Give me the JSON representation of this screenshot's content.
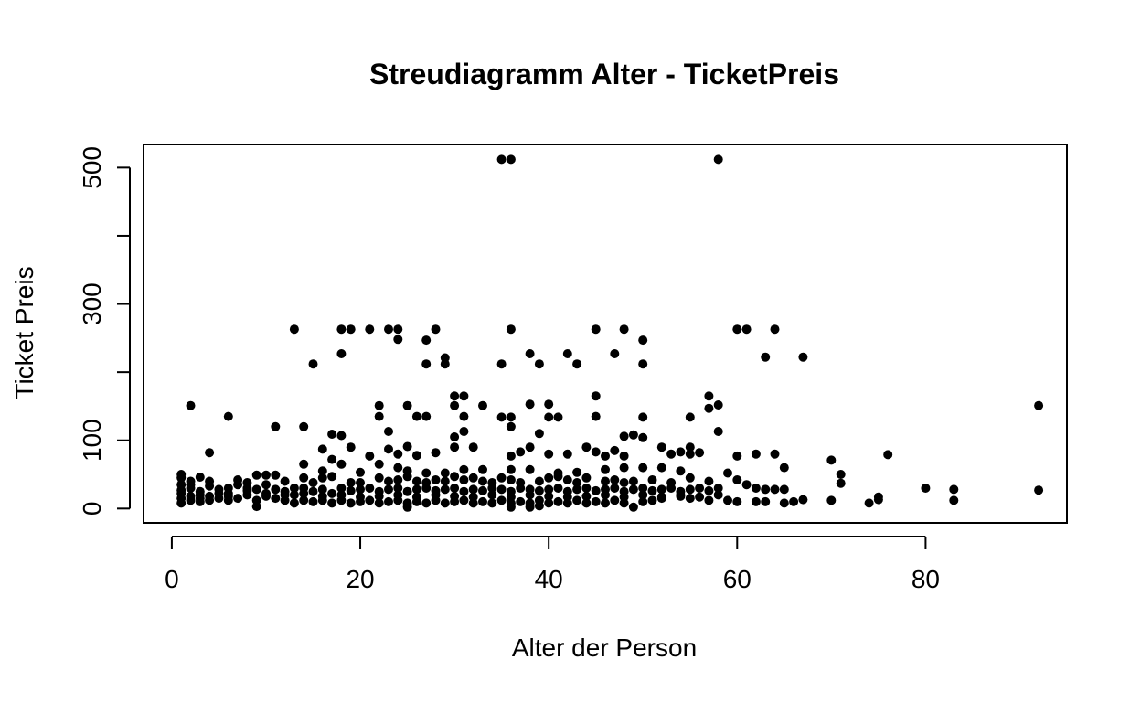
{
  "chart_data": {
    "type": "scatter",
    "title": "Streudiagramm Alter - TicketPreis",
    "xlabel": "Alter der Person",
    "ylabel": "Ticket Preis",
    "xlim": [
      -3,
      95
    ],
    "ylim": [
      -21,
      534
    ],
    "x_ticks": [
      0,
      20,
      40,
      60,
      80
    ],
    "y_ticks": [
      0,
      100,
      200,
      300,
      400,
      500
    ],
    "x_tick_labels": [
      "0",
      "20",
      "40",
      "60",
      "80"
    ],
    "y_tick_labels": [
      "0",
      "100",
      "300",
      "500"
    ],
    "y_tick_label_values": [
      0,
      100,
      300,
      500
    ],
    "grid": false,
    "legend": "none",
    "point_color": "#000000",
    "points": [
      [
        35,
        512
      ],
      [
        36,
        512
      ],
      [
        58,
        512
      ],
      [
        13,
        263
      ],
      [
        18,
        263
      ],
      [
        19,
        263
      ],
      [
        21,
        263
      ],
      [
        23,
        263
      ],
      [
        24,
        263
      ],
      [
        28,
        263
      ],
      [
        36,
        263
      ],
      [
        45,
        263
      ],
      [
        48,
        263
      ],
      [
        60,
        263
      ],
      [
        61,
        263
      ],
      [
        64,
        263
      ],
      [
        24,
        248
      ],
      [
        27,
        247
      ],
      [
        50,
        247
      ],
      [
        18,
        227
      ],
      [
        29,
        221
      ],
      [
        38,
        227
      ],
      [
        42,
        227
      ],
      [
        47,
        227
      ],
      [
        63,
        222
      ],
      [
        67,
        222
      ],
      [
        15,
        212
      ],
      [
        27,
        212
      ],
      [
        29,
        212
      ],
      [
        35,
        212
      ],
      [
        39,
        212
      ],
      [
        43,
        212
      ],
      [
        50,
        212
      ],
      [
        30,
        165
      ],
      [
        31,
        165
      ],
      [
        45,
        165
      ],
      [
        57,
        165
      ],
      [
        2,
        151
      ],
      [
        22,
        151
      ],
      [
        25,
        151
      ],
      [
        30,
        151
      ],
      [
        33,
        151
      ],
      [
        38,
        153
      ],
      [
        40,
        153
      ],
      [
        57,
        147
      ],
      [
        58,
        152
      ],
      [
        92,
        151
      ],
      [
        6,
        135
      ],
      [
        22,
        135
      ],
      [
        26,
        135
      ],
      [
        27,
        135
      ],
      [
        31,
        135
      ],
      [
        35,
        134
      ],
      [
        36,
        134
      ],
      [
        40,
        134
      ],
      [
        41,
        134
      ],
      [
        45,
        135
      ],
      [
        50,
        134
      ],
      [
        55,
        134
      ],
      [
        11,
        120
      ],
      [
        14,
        120
      ],
      [
        36,
        120
      ],
      [
        58,
        113
      ],
      [
        23,
        113
      ],
      [
        31,
        113
      ],
      [
        17,
        109
      ],
      [
        18,
        107
      ],
      [
        30,
        105
      ],
      [
        39,
        110
      ],
      [
        48,
        106
      ],
      [
        49,
        108
      ],
      [
        50,
        104
      ],
      [
        25,
        91
      ],
      [
        28,
        82
      ],
      [
        30,
        90
      ],
      [
        32,
        90
      ],
      [
        38,
        90
      ],
      [
        44,
        90
      ],
      [
        47,
        85
      ],
      [
        52,
        90
      ],
      [
        55,
        90
      ],
      [
        54,
        83
      ],
      [
        56,
        82
      ],
      [
        4,
        82
      ],
      [
        16,
        87
      ],
      [
        17,
        72
      ],
      [
        19,
        90
      ],
      [
        21,
        77
      ],
      [
        23,
        87
      ],
      [
        24,
        80
      ],
      [
        26,
        78
      ],
      [
        36,
        77
      ],
      [
        37,
        83
      ],
      [
        40,
        80
      ],
      [
        42,
        80
      ],
      [
        45,
        83
      ],
      [
        46,
        77
      ],
      [
        48,
        77
      ],
      [
        53,
        80
      ],
      [
        55,
        80
      ],
      [
        60,
        77
      ],
      [
        62,
        80
      ],
      [
        64,
        80
      ],
      [
        70,
        71
      ],
      [
        76,
        79
      ],
      [
        14,
        65
      ],
      [
        16,
        55
      ],
      [
        18,
        65
      ],
      [
        20,
        53
      ],
      [
        22,
        65
      ],
      [
        24,
        60
      ],
      [
        25,
        55
      ],
      [
        27,
        52
      ],
      [
        29,
        52
      ],
      [
        31,
        57
      ],
      [
        33,
        57
      ],
      [
        36,
        57
      ],
      [
        38,
        57
      ],
      [
        41,
        52
      ],
      [
        43,
        53
      ],
      [
        46,
        57
      ],
      [
        48,
        60
      ],
      [
        50,
        60
      ],
      [
        52,
        60
      ],
      [
        54,
        55
      ],
      [
        65,
        60
      ],
      [
        71,
        50
      ],
      [
        1,
        50
      ],
      [
        2,
        40
      ],
      [
        3,
        46
      ],
      [
        4,
        40
      ],
      [
        6,
        30
      ],
      [
        7,
        42
      ],
      [
        8,
        38
      ],
      [
        9,
        49
      ],
      [
        10,
        49
      ],
      [
        11,
        49
      ],
      [
        12,
        40
      ],
      [
        13,
        30
      ],
      [
        14,
        45
      ],
      [
        15,
        38
      ],
      [
        16,
        45
      ],
      [
        17,
        47
      ],
      [
        19,
        38
      ],
      [
        20,
        38
      ],
      [
        22,
        45
      ],
      [
        23,
        40
      ],
      [
        24,
        42
      ],
      [
        25,
        47
      ],
      [
        26,
        40
      ],
      [
        27,
        38
      ],
      [
        28,
        42
      ],
      [
        29,
        40
      ],
      [
        30,
        47
      ],
      [
        31,
        42
      ],
      [
        32,
        45
      ],
      [
        33,
        40
      ],
      [
        34,
        38
      ],
      [
        35,
        45
      ],
      [
        36,
        42
      ],
      [
        37,
        38
      ],
      [
        39,
        40
      ],
      [
        40,
        45
      ],
      [
        41,
        47
      ],
      [
        42,
        42
      ],
      [
        43,
        38
      ],
      [
        44,
        45
      ],
      [
        46,
        40
      ],
      [
        47,
        42
      ],
      [
        48,
        38
      ],
      [
        49,
        40
      ],
      [
        51,
        42
      ],
      [
        53,
        38
      ],
      [
        55,
        45
      ],
      [
        57,
        40
      ],
      [
        59,
        52
      ],
      [
        60,
        42
      ],
      [
        61,
        35
      ],
      [
        62,
        30
      ],
      [
        63,
        28
      ],
      [
        64,
        28
      ],
      [
        65,
        28
      ],
      [
        71,
        37
      ],
      [
        80,
        30
      ],
      [
        83,
        28
      ],
      [
        92,
        27
      ],
      [
        1,
        35
      ],
      [
        2,
        30
      ],
      [
        3,
        25
      ],
      [
        4,
        33
      ],
      [
        5,
        28
      ],
      [
        6,
        22
      ],
      [
        7,
        35
      ],
      [
        8,
        30
      ],
      [
        9,
        28
      ],
      [
        10,
        35
      ],
      [
        11,
        28
      ],
      [
        12,
        25
      ],
      [
        13,
        20
      ],
      [
        14,
        30
      ],
      [
        15,
        25
      ],
      [
        16,
        28
      ],
      [
        17,
        22
      ],
      [
        18,
        30
      ],
      [
        19,
        26
      ],
      [
        20,
        28
      ],
      [
        21,
        30
      ],
      [
        22,
        25
      ],
      [
        23,
        28
      ],
      [
        24,
        30
      ],
      [
        25,
        25
      ],
      [
        26,
        28
      ],
      [
        27,
        30
      ],
      [
        28,
        26
      ],
      [
        29,
        28
      ],
      [
        30,
        30
      ],
      [
        31,
        25
      ],
      [
        32,
        28
      ],
      [
        33,
        26
      ],
      [
        34,
        30
      ],
      [
        35,
        28
      ],
      [
        36,
        25
      ],
      [
        37,
        30
      ],
      [
        38,
        28
      ],
      [
        39,
        26
      ],
      [
        40,
        28
      ],
      [
        41,
        30
      ],
      [
        42,
        25
      ],
      [
        43,
        28
      ],
      [
        44,
        30
      ],
      [
        45,
        26
      ],
      [
        46,
        28
      ],
      [
        47,
        30
      ],
      [
        48,
        25
      ],
      [
        49,
        28
      ],
      [
        50,
        30
      ],
      [
        51,
        26
      ],
      [
        52,
        28
      ],
      [
        53,
        30
      ],
      [
        54,
        25
      ],
      [
        55,
        28
      ],
      [
        56,
        30
      ],
      [
        57,
        26
      ],
      [
        58,
        30
      ],
      [
        1,
        15
      ],
      [
        1,
        22
      ],
      [
        2,
        12
      ],
      [
        2,
        18
      ],
      [
        3,
        15
      ],
      [
        3,
        20
      ],
      [
        4,
        12
      ],
      [
        4,
        18
      ],
      [
        5,
        15
      ],
      [
        6,
        12
      ],
      [
        6,
        18
      ],
      [
        7,
        15
      ],
      [
        8,
        20
      ],
      [
        9,
        12
      ],
      [
        9,
        3
      ],
      [
        10,
        18
      ],
      [
        11,
        15
      ],
      [
        12,
        12
      ],
      [
        13,
        8
      ],
      [
        14,
        12
      ],
      [
        15,
        10
      ],
      [
        16,
        12
      ],
      [
        17,
        8
      ],
      [
        18,
        12
      ],
      [
        19,
        8
      ],
      [
        20,
        10
      ],
      [
        21,
        12
      ],
      [
        22,
        8
      ],
      [
        23,
        10
      ],
      [
        24,
        12
      ],
      [
        25,
        8
      ],
      [
        25,
        2
      ],
      [
        26,
        10
      ],
      [
        27,
        8
      ],
      [
        28,
        12
      ],
      [
        29,
        8
      ],
      [
        30,
        10
      ],
      [
        31,
        12
      ],
      [
        32,
        8
      ],
      [
        33,
        10
      ],
      [
        34,
        8
      ],
      [
        35,
        12
      ],
      [
        36,
        8
      ],
      [
        36,
        2
      ],
      [
        37,
        10
      ],
      [
        38,
        8
      ],
      [
        38,
        2
      ],
      [
        39,
        12
      ],
      [
        39,
        4
      ],
      [
        40,
        8
      ],
      [
        41,
        10
      ],
      [
        42,
        8
      ],
      [
        43,
        12
      ],
      [
        44,
        8
      ],
      [
        45,
        10
      ],
      [
        46,
        8
      ],
      [
        47,
        12
      ],
      [
        48,
        8
      ],
      [
        49,
        2
      ],
      [
        50,
        10
      ],
      [
        51,
        12
      ],
      [
        52,
        15
      ],
      [
        54,
        20
      ],
      [
        55,
        15
      ],
      [
        57,
        12
      ],
      [
        59,
        12
      ],
      [
        60,
        10
      ],
      [
        62,
        10
      ],
      [
        63,
        10
      ],
      [
        65,
        8
      ],
      [
        66,
        10
      ],
      [
        67,
        13
      ],
      [
        70,
        12
      ],
      [
        74,
        8
      ],
      [
        75,
        13
      ],
      [
        75,
        17
      ],
      [
        83,
        12
      ],
      [
        1,
        45
      ],
      [
        1,
        27
      ],
      [
        1,
        8
      ],
      [
        2,
        35
      ],
      [
        3,
        10
      ],
      [
        5,
        22
      ],
      [
        8,
        26
      ],
      [
        10,
        22
      ],
      [
        12,
        20
      ],
      [
        14,
        22
      ],
      [
        16,
        18
      ],
      [
        18,
        20
      ],
      [
        20,
        17
      ],
      [
        22,
        18
      ],
      [
        24,
        20
      ],
      [
        26,
        17
      ],
      [
        28,
        20
      ],
      [
        30,
        18
      ],
      [
        32,
        17
      ],
      [
        34,
        20
      ],
      [
        36,
        17
      ],
      [
        38,
        20
      ],
      [
        40,
        18
      ],
      [
        42,
        17
      ],
      [
        44,
        18
      ],
      [
        46,
        20
      ],
      [
        48,
        17
      ],
      [
        50,
        20
      ],
      [
        52,
        17
      ],
      [
        54,
        18
      ],
      [
        56,
        17
      ],
      [
        58,
        20
      ]
    ]
  }
}
